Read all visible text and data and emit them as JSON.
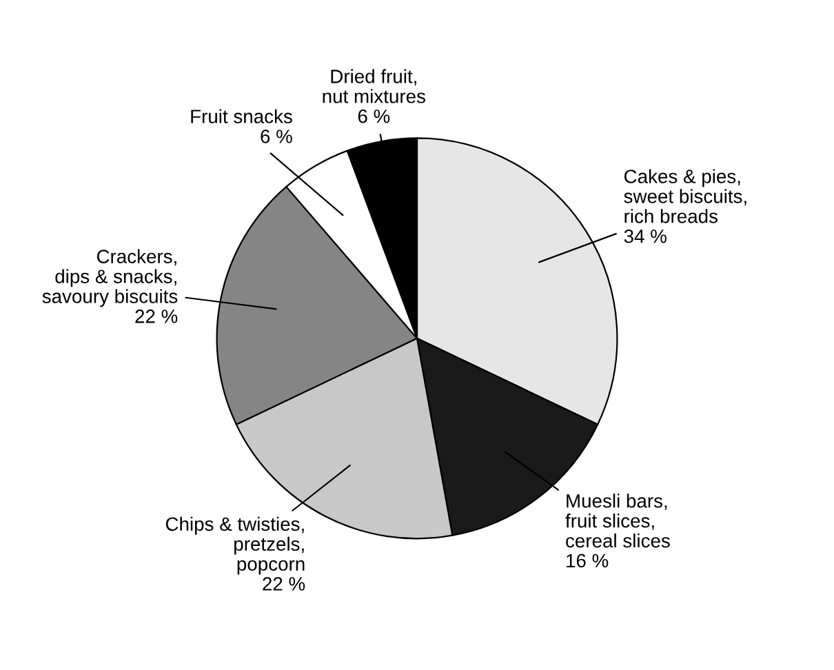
{
  "chart_data": {
    "type": "pie",
    "categories": [
      "Cakes & pies,\nsweet biscuits,\nrich breads",
      "Muesli bars,\nfruit slices,\ncereal slices",
      "Chips & twisties,\npretzels,\npopcorn",
      "Crackers,\ndips & snacks,\nsavoury biscuits",
      "Fruit snacks",
      "Dried fruit,\nnut mixtures"
    ],
    "values": [
      34,
      16,
      22,
      22,
      6,
      6
    ],
    "value_labels": [
      "34 %",
      "16 %",
      "22 %",
      "22 %",
      "6 %",
      "6 %"
    ],
    "colors": [
      "#e6e6e6",
      "#1a1a1a",
      "#c8c8c8",
      "#858585",
      "#ffffff",
      "#000000"
    ],
    "legend": false
  }
}
